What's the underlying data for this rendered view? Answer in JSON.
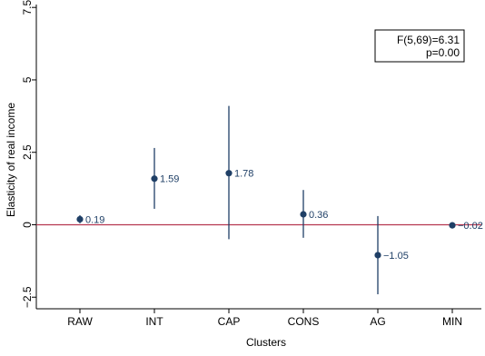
{
  "chart_data": {
    "type": "scatter",
    "title": "",
    "xlabel": "Clusters",
    "ylabel": "Elasticity of real income",
    "ylim": [
      -2.9,
      7.6
    ],
    "yticks": [
      -2.5,
      0,
      2.5,
      5,
      7.5
    ],
    "ytick_labels": [
      "−2.5",
      "0",
      "2.5",
      "5",
      "7.5"
    ],
    "categories": [
      "RAW",
      "INT",
      "CAP",
      "CONS",
      "AG",
      "MIN"
    ],
    "series": [
      {
        "values": [
          0.19,
          1.59,
          1.78,
          0.36,
          -1.05,
          -0.02
        ],
        "ci_low": [
          0.05,
          0.55,
          -0.5,
          -0.45,
          -2.4,
          -0.02
        ],
        "ci_high": [
          0.33,
          2.65,
          4.1,
          1.2,
          0.3,
          -0.02
        ],
        "labels": [
          "0.19",
          "1.59",
          "1.78",
          "0.36",
          "−1.05",
          "−0.02"
        ]
      }
    ],
    "reference_line": {
      "y": 0,
      "color": "#b5364f"
    },
    "marker_color": "#1f3f66",
    "annotation": {
      "line1": "F(5,69)=6.31",
      "line2": "p=0.00",
      "position": "top-right"
    },
    "grid": false
  }
}
